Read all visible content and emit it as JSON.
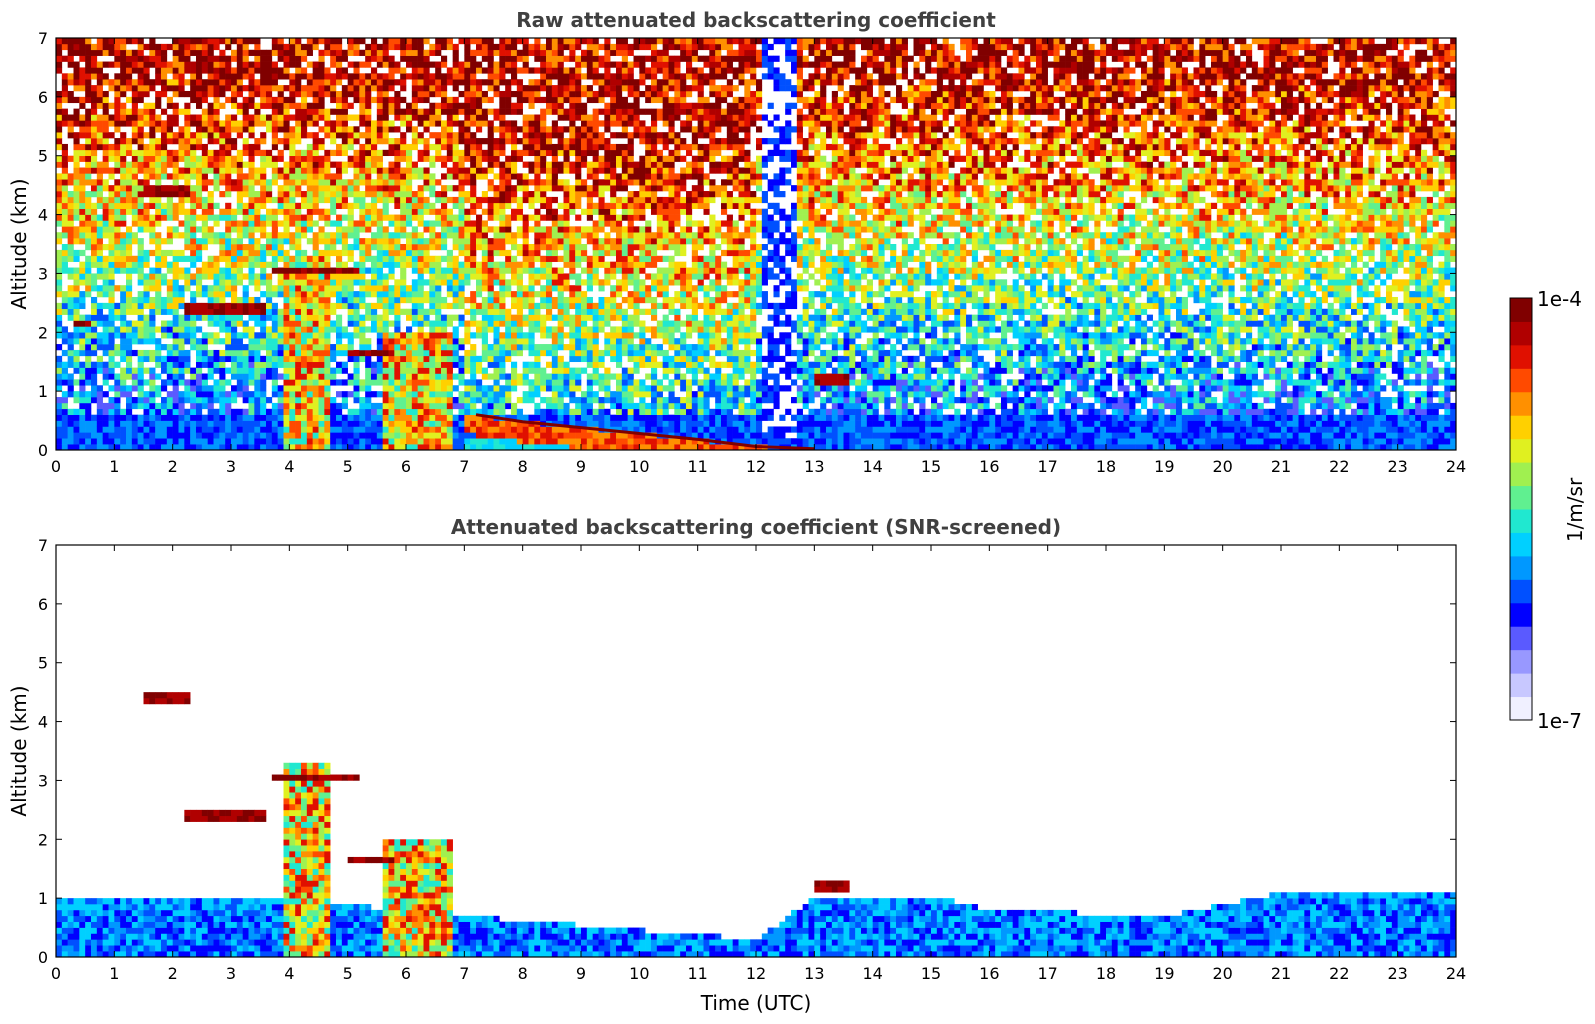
{
  "chart_data": [
    {
      "type": "heatmap",
      "title": "Raw attenuated backscattering coefficient",
      "xlabel": "",
      "ylabel": "Altitude (km)",
      "xlim": [
        0,
        24
      ],
      "ylim": [
        0,
        7
      ],
      "x_ticks": [
        "0",
        "1",
        "2",
        "3",
        "4",
        "5",
        "6",
        "7",
        "8",
        "9",
        "10",
        "11",
        "12",
        "13",
        "14",
        "15",
        "16",
        "17",
        "18",
        "19",
        "20",
        "21",
        "22",
        "23",
        "24"
      ],
      "y_ticks": [
        "0",
        "1",
        "2",
        "3",
        "4",
        "5",
        "6",
        "7"
      ],
      "features": [
        {
          "kind": "boundary_layer",
          "t_start": 0,
          "t_end": 24,
          "top_km": 0.6
        },
        {
          "kind": "aerosol_layer_descending",
          "points": [
            [
              7.2,
              0.6
            ],
            [
              8,
              0.48
            ],
            [
              9,
              0.38
            ],
            [
              10,
              0.28
            ],
            [
              11,
              0.18
            ],
            [
              12,
              0.06
            ],
            [
              13,
              0.02
            ]
          ]
        },
        {
          "kind": "cloud",
          "t_start": 1.5,
          "t_end": 2.3,
          "alt_km": 4.38
        },
        {
          "kind": "cloud",
          "t_start": 0.3,
          "t_end": 0.6,
          "alt_km": 2.15
        },
        {
          "kind": "cloud",
          "t_start": 2.2,
          "t_end": 3.6,
          "alt_km": 2.4
        },
        {
          "kind": "cloud",
          "t_start": 3.7,
          "t_end": 5.2,
          "alt_km": 3.05
        },
        {
          "kind": "cloud",
          "t_start": 5.0,
          "t_end": 5.8,
          "alt_km": 1.65
        },
        {
          "kind": "cloud",
          "t_start": 13.0,
          "t_end": 13.6,
          "alt_km": 1.2
        },
        {
          "kind": "precipitation",
          "t_start": 3.9,
          "t_end": 4.7,
          "top_km": 3.3
        },
        {
          "kind": "precipitation",
          "t_start": 5.6,
          "t_end": 6.8,
          "top_km": 2.0
        },
        {
          "kind": "no_signal",
          "t_start": 12.1,
          "t_end": 12.7,
          "alt_from_km": 0.2,
          "alt_to_km": 7
        }
      ]
    },
    {
      "type": "heatmap",
      "title": "Attenuated backscattering coefficient (SNR-screened)",
      "xlabel": "Time (UTC)",
      "ylabel": "Altitude (km)",
      "xlim": [
        0,
        24
      ],
      "ylim": [
        0,
        7
      ],
      "x_ticks": [
        "0",
        "1",
        "2",
        "3",
        "4",
        "5",
        "6",
        "7",
        "8",
        "9",
        "10",
        "11",
        "12",
        "13",
        "14",
        "15",
        "16",
        "17",
        "18",
        "19",
        "20",
        "21",
        "22",
        "23",
        "24"
      ],
      "y_ticks": [
        "0",
        "1",
        "2",
        "3",
        "4",
        "5",
        "6",
        "7"
      ],
      "features": [
        {
          "kind": "boundary_layer",
          "points": [
            [
              0,
              1.0
            ],
            [
              3.8,
              1.0
            ],
            [
              7,
              0.7
            ],
            [
              12,
              0.3
            ],
            [
              13,
              1.0
            ],
            [
              15,
              1.05
            ],
            [
              16,
              0.8
            ],
            [
              19,
              0.7
            ],
            [
              21,
              1.1
            ],
            [
              24,
              1.1
            ]
          ]
        },
        {
          "kind": "cloud",
          "t_start": 1.5,
          "t_end": 2.3,
          "alt_km": 4.38
        },
        {
          "kind": "cloud",
          "t_start": 2.2,
          "t_end": 3.6,
          "alt_km": 2.4
        },
        {
          "kind": "cloud",
          "t_start": 3.7,
          "t_end": 5.2,
          "alt_km": 3.05
        },
        {
          "kind": "cloud",
          "t_start": 5.0,
          "t_end": 5.8,
          "alt_km": 1.65
        },
        {
          "kind": "cloud",
          "t_start": 13.0,
          "t_end": 13.6,
          "alt_km": 1.2
        },
        {
          "kind": "precipitation",
          "t_start": 3.9,
          "t_end": 4.7,
          "top_km": 3.3
        },
        {
          "kind": "precipitation",
          "t_start": 5.6,
          "t_end": 6.8,
          "top_km": 2.0
        }
      ]
    }
  ],
  "colorbar": {
    "max_label": "1e-4",
    "min_label": "1e-7",
    "unit_label": "1/m/sr",
    "colors": [
      "#f0f0ff",
      "#c8c8ff",
      "#9898ff",
      "#5a5aff",
      "#0000ff",
      "#0050ff",
      "#0098ff",
      "#00d0ff",
      "#20e8d0",
      "#60f090",
      "#a0f050",
      "#e0f020",
      "#ffd000",
      "#ff9000",
      "#ff4a00",
      "#e01000",
      "#b00000",
      "#800000"
    ]
  }
}
